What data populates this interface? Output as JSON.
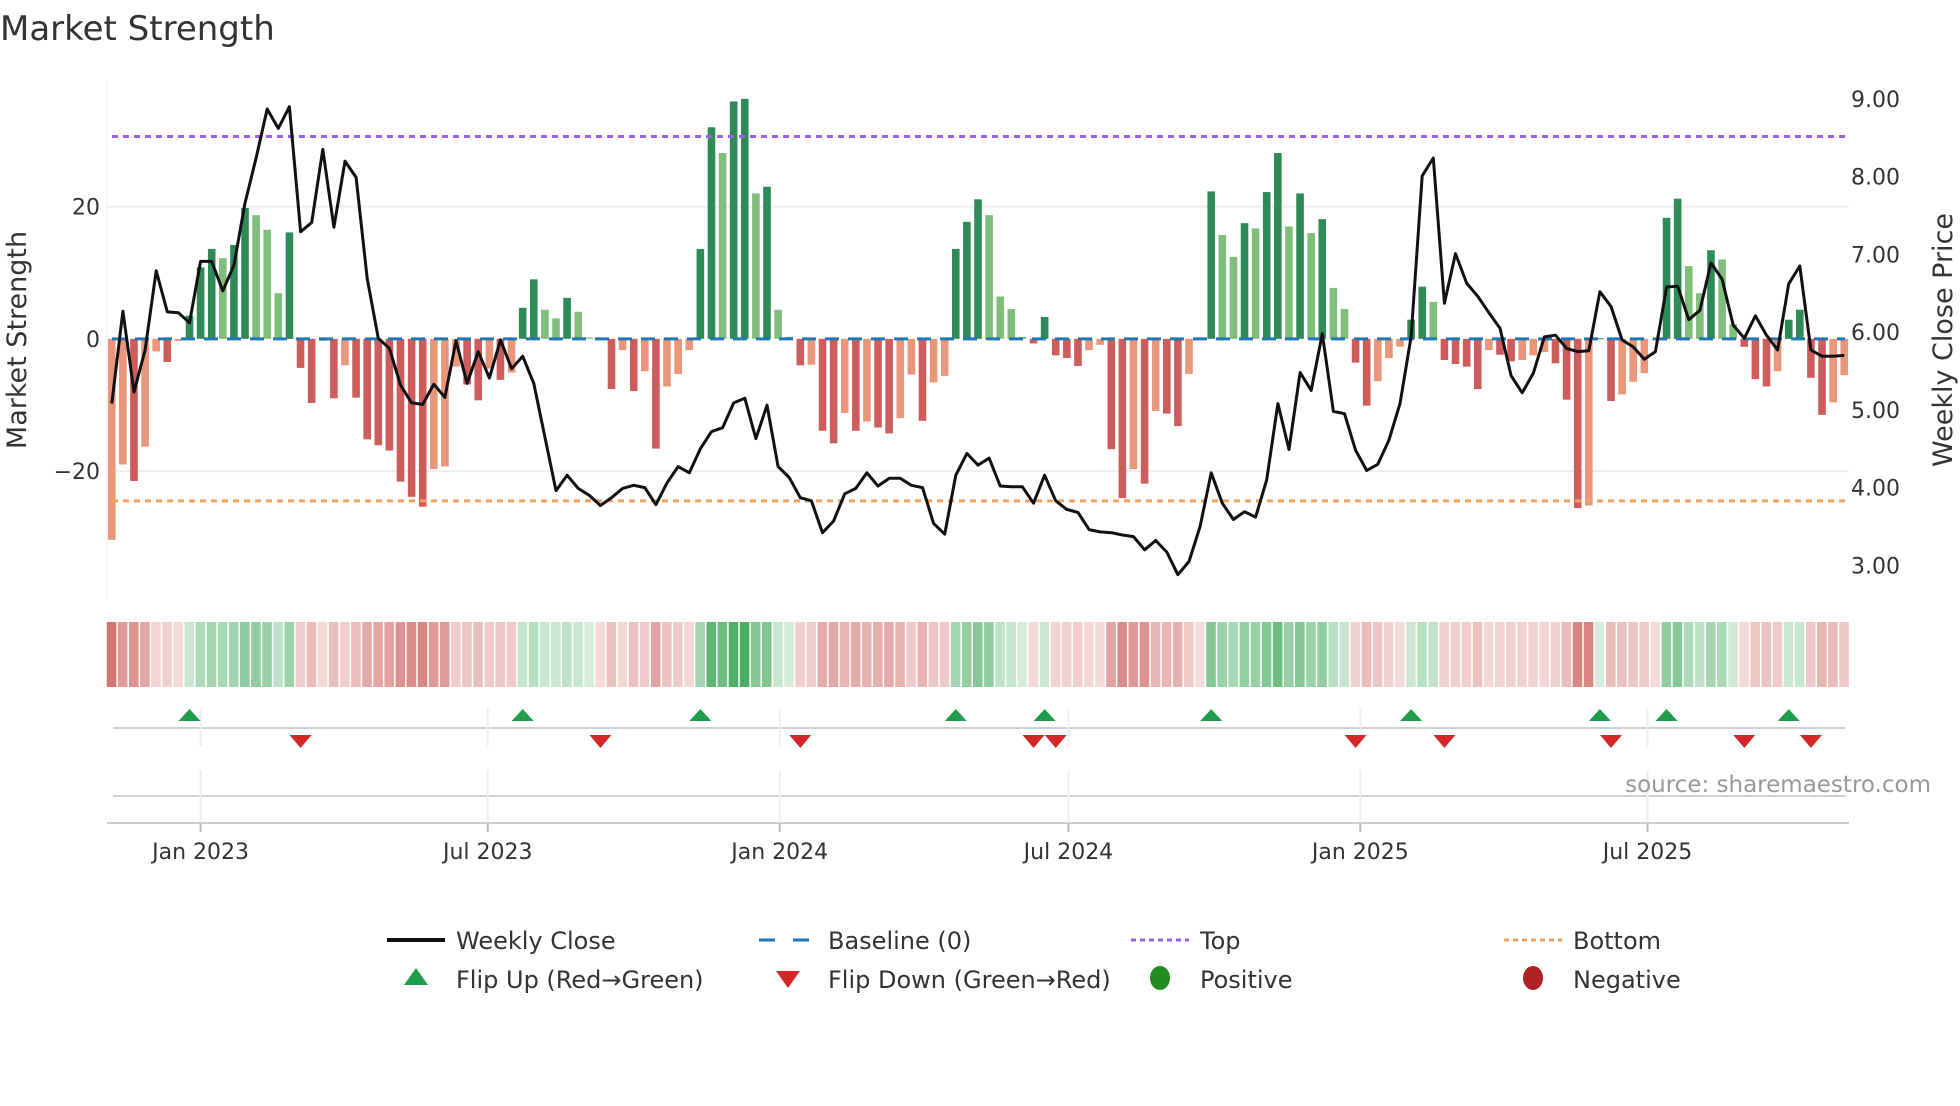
{
  "chart_data": {
    "type": "bar",
    "title": "Market Strength",
    "ylabel": "Market Strength",
    "y2label": "Weekly Close Price",
    "ylim": [
      -39.2,
      39
    ],
    "y2lim": [
      2.58,
      9.23
    ],
    "xlim": [
      "2022-11-03",
      "2025-11-05"
    ],
    "yticks": [
      -20,
      0,
      20
    ],
    "ytick_labels": [
      "−20",
      "0",
      "20"
    ],
    "y2ticks": [
      3,
      4,
      5,
      6,
      7,
      8,
      9
    ],
    "y2tick_labels": [
      "3.00",
      "4.00",
      "5.00",
      "6.00",
      "7.00",
      "8.00",
      "9.00"
    ],
    "xticks": [
      {
        "date": "2023-01-01",
        "label": "Jan 2023"
      },
      {
        "date": "2023-07-01",
        "label": "Jul 2023"
      },
      {
        "date": "2024-01-01",
        "label": "Jan 2024"
      },
      {
        "date": "2024-07-01",
        "label": "Jul 2024"
      },
      {
        "date": "2025-01-01",
        "label": "Jan 2025"
      },
      {
        "date": "2025-07-01",
        "label": "Jul 2025"
      }
    ],
    "first_week": "2022-11-06",
    "week_step_days": 7,
    "top_level": 30.6,
    "bottom_level": -24.5,
    "baseline": 0,
    "strength": [
      -30.4,
      -19.0,
      -21.5,
      -16.3,
      -1.9,
      -3.5,
      -0.3,
      3.5,
      10.8,
      13.6,
      12.2,
      14.2,
      19.8,
      18.7,
      16.5,
      6.9,
      16.1,
      -4.4,
      -9.7,
      -0.3,
      -9.0,
      -4.0,
      -8.9,
      -15.2,
      -16.1,
      -16.9,
      -21.6,
      -23.9,
      -25.4,
      -19.7,
      -19.3,
      -4.2,
      -6.9,
      -9.3,
      -4.5,
      -6.2,
      -5.1,
      4.7,
      9.0,
      4.4,
      3.1,
      6.2,
      4.1,
      0.2,
      -0.1,
      -7.6,
      -1.7,
      -7.9,
      -4.9,
      -16.6,
      -7.2,
      -5.3,
      -1.7,
      13.6,
      32.0,
      28.1,
      35.9,
      36.3,
      22.0,
      23.0,
      4.4,
      0.3,
      -4.0,
      -3.9,
      -13.9,
      -15.8,
      -11.2,
      -13.9,
      -12.5,
      -13.4,
      -14.3,
      -12.0,
      -5.4,
      -12.4,
      -6.6,
      -5.6,
      13.6,
      17.7,
      21.1,
      18.7,
      6.4,
      4.5,
      0.3,
      -0.7,
      3.3,
      -2.5,
      -2.9,
      -4.1,
      -1.7,
      -0.9,
      -16.7,
      -24.1,
      -19.7,
      -21.9,
      -10.9,
      -11.3,
      -13.2,
      -5.3,
      -0.1,
      22.3,
      15.7,
      12.4,
      17.5,
      16.7,
      22.2,
      28.1,
      17.0,
      22.0,
      16.0,
      18.1,
      7.7,
      4.5,
      -3.6,
      -10.1,
      -6.4,
      -2.9,
      -1.2,
      2.9,
      7.9,
      5.6,
      -3.2,
      -3.8,
      -4.2,
      -7.6,
      -1.7,
      -2.4,
      -3.4,
      -3.2,
      -2.5,
      -2.0,
      -3.7,
      -9.2,
      -25.6,
      -25.2,
      0.1,
      -9.4,
      -8.4,
      -6.5,
      -5.2,
      -0.2,
      18.3,
      21.2,
      11.0,
      6.9,
      13.4,
      12.0,
      2.2,
      -1.2,
      -6.1,
      -7.2,
      -4.9,
      2.9,
      4.4,
      -5.9,
      -11.5,
      -9.6,
      -5.5
    ],
    "weekly_close": [
      5.08,
      6.27,
      5.23,
      5.77,
      6.79,
      6.26,
      6.25,
      6.12,
      6.91,
      6.91,
      6.53,
      6.86,
      7.66,
      8.24,
      8.87,
      8.62,
      8.9,
      7.29,
      7.41,
      8.35,
      7.35,
      8.2,
      7.99,
      6.69,
      5.92,
      5.79,
      5.32,
      5.09,
      5.07,
      5.33,
      5.16,
      5.89,
      5.34,
      5.75,
      5.41,
      5.9,
      5.53,
      5.69,
      5.34,
      4.65,
      3.96,
      4.16,
      3.99,
      3.9,
      3.77,
      3.87,
      3.99,
      4.03,
      4.0,
      3.78,
      4.06,
      4.27,
      4.19,
      4.5,
      4.72,
      4.77,
      5.09,
      5.15,
      4.63,
      5.06,
      4.27,
      4.13,
      3.87,
      3.83,
      3.42,
      3.57,
      3.92,
      3.99,
      4.19,
      4.02,
      4.12,
      4.12,
      4.03,
      4.0,
      3.54,
      3.4,
      4.16,
      4.44,
      4.29,
      4.38,
      4.02,
      4.01,
      4.01,
      3.8,
      4.16,
      3.83,
      3.72,
      3.68,
      3.46,
      3.43,
      3.42,
      3.39,
      3.37,
      3.2,
      3.32,
      3.17,
      2.88,
      3.05,
      3.5,
      4.19,
      3.8,
      3.59,
      3.69,
      3.62,
      4.1,
      5.08,
      4.49,
      5.48,
      5.25,
      5.98,
      4.98,
      4.95,
      4.48,
      4.22,
      4.3,
      4.61,
      5.08,
      5.94,
      8.01,
      8.24,
      6.37,
      7.01,
      6.63,
      6.46,
      6.25,
      6.05,
      5.44,
      5.22,
      5.47,
      5.94,
      5.96,
      5.79,
      5.75,
      5.76,
      6.52,
      6.33,
      5.9,
      5.81,
      5.65,
      5.75,
      6.58,
      6.59,
      6.16,
      6.28,
      6.89,
      6.68,
      6.09,
      5.92,
      6.21,
      5.96,
      5.77,
      6.62,
      6.85,
      5.77,
      5.69,
      5.69,
      5.7
    ],
    "legend": {
      "placement": "bottom",
      "items": [
        {
          "label": "Weekly Close",
          "kind": "line"
        },
        {
          "label": "Baseline (0)",
          "kind": "dash"
        },
        {
          "label": "Top",
          "kind": "dot-top"
        },
        {
          "label": "Bottom",
          "kind": "dot-bottom"
        },
        {
          "label": "Flip Up (Red→Green)",
          "kind": "tri-up"
        },
        {
          "label": "Flip Down (Green→Red)",
          "kind": "tri-down"
        },
        {
          "label": "Positive",
          "kind": "dot-pos"
        },
        {
          "label": "Negative",
          "kind": "dot-neg"
        }
      ]
    },
    "source": "source: sharemaestro.com",
    "colors": {
      "pos_rising": "#2e8b57",
      "pos_falling": "#7fbf7b",
      "neg_falling": "#cd5c5c",
      "neg_rising": "#e9967a",
      "close": "#111111",
      "baseline": "#1f77b4",
      "top": "#9b5fe0",
      "bottom": "#f0a060",
      "flip_up": "#1e9e4a",
      "flip_down": "#d62728",
      "positive": "#228b22",
      "negative": "#b22222",
      "heat_pos": "#3aa655",
      "heat_neg": "#c8504b"
    }
  }
}
